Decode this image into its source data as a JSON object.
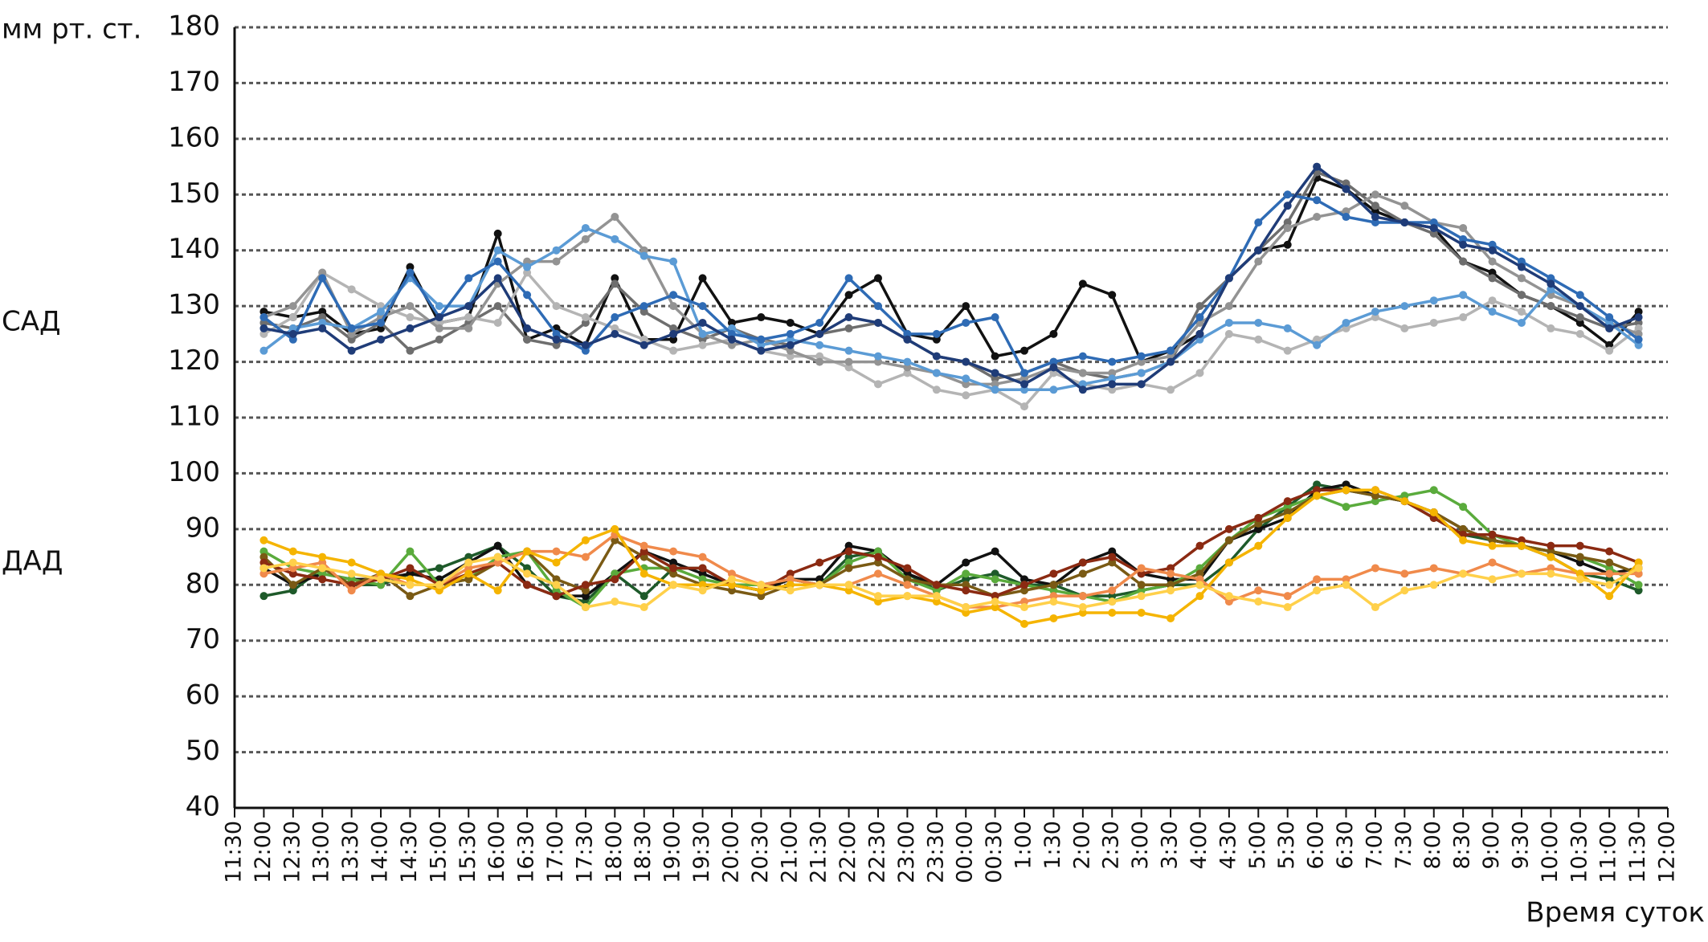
{
  "chart_data": {
    "type": "line",
    "y_label": "мм рт. ст.",
    "x_label": "Время суток",
    "annotations": [
      {
        "text": "САД",
        "y": 127
      },
      {
        "text": "ДАД",
        "y": 84
      }
    ],
    "categories": [
      "11:30",
      "12:00",
      "12:30",
      "13:00",
      "13:30",
      "14:00",
      "14:30",
      "15:00",
      "15:30",
      "16:00",
      "16:30",
      "17:00",
      "17:30",
      "18:00",
      "18:30",
      "19:00",
      "19:30",
      "20:00",
      "20:30",
      "21:00",
      "21:30",
      "22:00",
      "22:30",
      "23:00",
      "23:30",
      "00:00",
      "00:30",
      "1:00",
      "1:30",
      "2:00",
      "2:30",
      "3:00",
      "3:30",
      "4:00",
      "4:30",
      "5:00",
      "5:30",
      "6:00",
      "6:30",
      "7:00",
      "7:30",
      "8:00",
      "8:30",
      "9:00",
      "9:30",
      "10:00",
      "10:30",
      "11:00",
      "11:30",
      "12:00"
    ],
    "ylim": [
      40,
      180
    ],
    "yticks": [
      40,
      50,
      60,
      70,
      80,
      90,
      100,
      110,
      120,
      130,
      140,
      150,
      160,
      170,
      180
    ],
    "grid": true,
    "series": [
      {
        "color": "#111111",
        "values": [
          null,
          129,
          128,
          129,
          125,
          126,
          137,
          127,
          128,
          143,
          124,
          126,
          123,
          135,
          124,
          124,
          135,
          127,
          128,
          127,
          125,
          132,
          135,
          125,
          124,
          130,
          121,
          122,
          125,
          134,
          132,
          120,
          122,
          125,
          135,
          140,
          141,
          153,
          151,
          147,
          145,
          144,
          138,
          136,
          132,
          130,
          127,
          123,
          129,
          null
        ]
      },
      {
        "color": "#6e6e6e",
        "values": [
          null,
          127,
          126,
          128,
          124,
          127,
          122,
          124,
          127,
          130,
          124,
          123,
          127,
          134,
          129,
          126,
          124,
          126,
          124,
          123,
          125,
          126,
          127,
          124,
          121,
          120,
          117,
          118,
          120,
          118,
          117,
          118,
          120,
          130,
          135,
          140,
          145,
          154,
          152,
          148,
          145,
          143,
          138,
          135,
          132,
          130,
          128,
          126,
          127,
          null
        ]
      },
      {
        "color": "#b4b4b4",
        "values": [
          null,
          125,
          128,
          136,
          133,
          130,
          128,
          127,
          128,
          127,
          136,
          130,
          128,
          126,
          124,
          122,
          123,
          124,
          122,
          121,
          121,
          119,
          116,
          118,
          115,
          114,
          115,
          112,
          118,
          116,
          115,
          116,
          115,
          118,
          125,
          124,
          122,
          124,
          126,
          128,
          126,
          127,
          128,
          131,
          129,
          126,
          125,
          122,
          126,
          null
        ]
      },
      {
        "color": "#939393",
        "values": [
          null,
          128,
          130,
          136,
          125,
          128,
          130,
          126,
          126,
          134,
          138,
          138,
          142,
          146,
          140,
          130,
          125,
          123,
          124,
          122,
          120,
          120,
          120,
          119,
          118,
          116,
          116,
          117,
          119,
          118,
          118,
          120,
          121,
          127,
          130,
          138,
          144,
          146,
          147,
          150,
          148,
          145,
          144,
          138,
          135,
          132,
          130,
          127,
          125,
          null
        ]
      },
      {
        "color": "#5b9bd5",
        "values": [
          null,
          122,
          126,
          127,
          126,
          129,
          135,
          130,
          130,
          140,
          137,
          140,
          144,
          142,
          139,
          138,
          125,
          126,
          123,
          124,
          123,
          122,
          121,
          120,
          118,
          117,
          115,
          115,
          115,
          116,
          117,
          118,
          120,
          124,
          127,
          127,
          126,
          123,
          127,
          129,
          130,
          131,
          132,
          129,
          127,
          133,
          130,
          127,
          123,
          null
        ]
      },
      {
        "color": "#2e6bb5",
        "values": [
          null,
          128,
          124,
          135,
          126,
          127,
          136,
          128,
          135,
          138,
          132,
          125,
          122,
          128,
          130,
          132,
          130,
          125,
          124,
          125,
          127,
          135,
          130,
          125,
          125,
          127,
          128,
          118,
          120,
          121,
          120,
          121,
          122,
          128,
          135,
          145,
          150,
          149,
          146,
          145,
          145,
          145,
          142,
          141,
          138,
          135,
          132,
          128,
          124,
          null
        ]
      },
      {
        "color": "#1f3c78",
        "values": [
          null,
          126,
          125,
          126,
          122,
          124,
          126,
          128,
          130,
          135,
          126,
          124,
          123,
          125,
          123,
          125,
          127,
          124,
          122,
          123,
          125,
          128,
          127,
          124,
          121,
          120,
          118,
          116,
          119,
          115,
          116,
          116,
          120,
          125,
          135,
          140,
          148,
          155,
          151,
          146,
          145,
          144,
          141,
          140,
          137,
          134,
          130,
          126,
          128,
          null
        ]
      },
      {
        "color": "#1e5a2a",
        "values": [
          null,
          78,
          79,
          83,
          80,
          80,
          82,
          83,
          85,
          87,
          83,
          78,
          77,
          82,
          78,
          83,
          83,
          80,
          79,
          81,
          80,
          85,
          86,
          82,
          79,
          81,
          82,
          80,
          80,
          78,
          78,
          79,
          80,
          80,
          84,
          90,
          94,
          98,
          97,
          96,
          95,
          92,
          89,
          88,
          87,
          85,
          82,
          81,
          79,
          null
        ]
      },
      {
        "color": "#111111",
        "values": [
          null,
          83,
          80,
          82,
          81,
          81,
          82,
          81,
          84,
          87,
          80,
          78,
          78,
          82,
          86,
          84,
          82,
          80,
          79,
          81,
          81,
          87,
          86,
          82,
          80,
          84,
          86,
          81,
          80,
          84,
          86,
          82,
          81,
          81,
          88,
          90,
          92,
          97,
          98,
          96,
          95,
          93,
          90,
          88,
          87,
          86,
          84,
          82,
          83,
          null
        ]
      },
      {
        "color": "#5aab3c",
        "values": [
          null,
          86,
          83,
          82,
          81,
          80,
          86,
          80,
          81,
          85,
          86,
          79,
          76,
          82,
          83,
          83,
          81,
          80,
          80,
          81,
          80,
          84,
          86,
          81,
          79,
          82,
          81,
          80,
          79,
          78,
          77,
          79,
          80,
          83,
          88,
          92,
          94,
          96,
          94,
          95,
          96,
          97,
          94,
          89,
          87,
          86,
          85,
          83,
          80,
          null
        ]
      },
      {
        "color": "#7a5a14",
        "values": [
          null,
          85,
          80,
          83,
          80,
          82,
          78,
          80,
          81,
          84,
          86,
          81,
          79,
          88,
          85,
          82,
          80,
          79,
          78,
          80,
          80,
          83,
          84,
          81,
          80,
          80,
          78,
          79,
          80,
          82,
          84,
          80,
          80,
          82,
          88,
          91,
          93,
          96,
          97,
          96,
          95,
          93,
          90,
          88,
          87,
          86,
          85,
          84,
          82,
          null
        ]
      },
      {
        "color": "#8b2a12",
        "values": [
          null,
          84,
          82,
          81,
          80,
          81,
          83,
          80,
          82,
          84,
          80,
          78,
          80,
          81,
          86,
          83,
          83,
          80,
          79,
          82,
          84,
          86,
          85,
          83,
          80,
          79,
          78,
          80,
          82,
          84,
          85,
          82,
          83,
          87,
          90,
          92,
          95,
          97,
          97,
          97,
          95,
          92,
          89,
          89,
          88,
          87,
          87,
          86,
          84,
          null
        ]
      },
      {
        "color": "#f08a4b",
        "values": [
          null,
          82,
          83,
          84,
          79,
          82,
          80,
          80,
          83,
          84,
          86,
          86,
          85,
          89,
          87,
          86,
          85,
          82,
          80,
          81,
          80,
          80,
          82,
          80,
          78,
          76,
          76,
          77,
          78,
          78,
          79,
          83,
          82,
          81,
          77,
          79,
          78,
          81,
          81,
          83,
          82,
          83,
          82,
          84,
          82,
          83,
          82,
          82,
          82,
          null
        ]
      },
      {
        "color": "#f5b400",
        "values": [
          null,
          88,
          86,
          85,
          84,
          82,
          81,
          79,
          82,
          79,
          86,
          84,
          88,
          90,
          82,
          80,
          80,
          80,
          79,
          80,
          80,
          79,
          77,
          78,
          77,
          75,
          76,
          73,
          74,
          75,
          75,
          75,
          74,
          78,
          84,
          87,
          92,
          96,
          97,
          97,
          95,
          93,
          88,
          87,
          87,
          85,
          82,
          78,
          84,
          null
        ]
      },
      {
        "color": "#ffd04a",
        "values": [
          null,
          83,
          84,
          83,
          82,
          81,
          80,
          80,
          84,
          85,
          82,
          80,
          76,
          77,
          76,
          80,
          79,
          81,
          80,
          79,
          80,
          80,
          78,
          78,
          78,
          76,
          77,
          76,
          77,
          76,
          77,
          78,
          79,
          80,
          78,
          77,
          76,
          79,
          80,
          76,
          79,
          80,
          82,
          81,
          82,
          82,
          81,
          80,
          83,
          null
        ]
      }
    ]
  }
}
